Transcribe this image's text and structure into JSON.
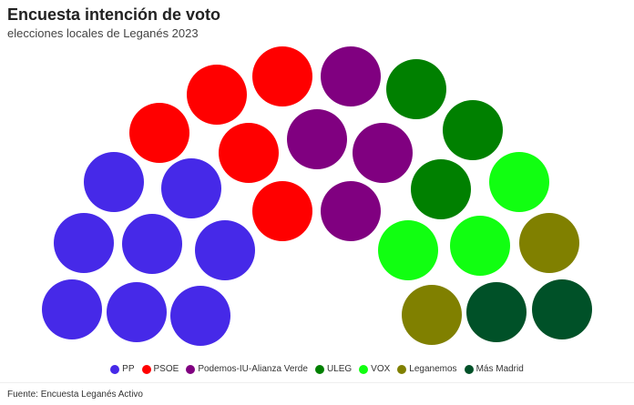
{
  "chart_data": {
    "type": "parliament",
    "title": "Encuesta intención de voto",
    "subtitle": "elecciones locales de Leganés 2023",
    "series": [
      {
        "name": "PP",
        "seats": 8,
        "color": "#4629e8"
      },
      {
        "name": "PSOE",
        "seats": 5,
        "color": "#ff0000"
      },
      {
        "name": "Podemos-IU-Alianza Verde",
        "seats": 4,
        "color": "#800080"
      },
      {
        "name": "ULEG",
        "seats": 3,
        "color": "#008000"
      },
      {
        "name": "VOX",
        "seats": 3,
        "color": "#11ff11"
      },
      {
        "name": "Leganemos",
        "seats": 2,
        "color": "#808000"
      },
      {
        "name": "Más Madrid",
        "seats": 2,
        "color": "#005128"
      }
    ],
    "legend_position": "bottom",
    "source": "Fuente: Encuesta Leganés Activo"
  }
}
